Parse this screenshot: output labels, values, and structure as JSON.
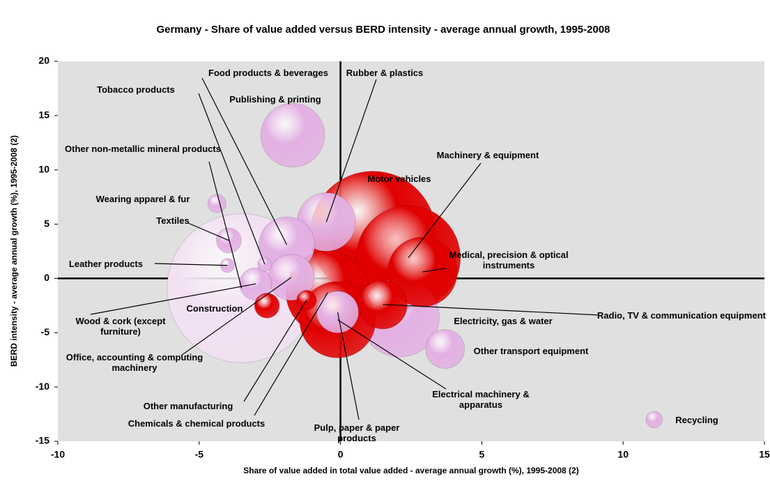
{
  "chart_data": {
    "type": "bubble",
    "title": "Germany - Share of value added versus BERD intensity - average annual growth, 1995-2008",
    "x_label": "Share of value added in total value added - average annual growth (%), 1995-2008 (2)",
    "y_label": "BERD intensity - average annual growth (%), 1995-2008 (2)",
    "xlim": [
      -10,
      15
    ],
    "xticks": [
      -10,
      -5,
      0,
      5,
      10,
      15
    ],
    "ylim": [
      -15,
      20
    ],
    "yticks": [
      -15,
      -10,
      -5,
      0,
      5,
      10,
      15,
      20
    ],
    "points": [
      {
        "label": "Other non-metallic mineral products",
        "x": -3.5,
        "y": -0.9,
        "size": 114,
        "color": "#f3e1f3"
      },
      {
        "label": "Motor vehicles",
        "x": 1.15,
        "y": 4.1,
        "size": 81,
        "color": "#e00000"
      },
      {
        "label": "Machinery & equipment",
        "x": 2.4,
        "y": 1.9,
        "size": 56,
        "color": "#e00000"
      },
      {
        "label": "Chemicals & chemical products",
        "x": -0.45,
        "y": -1.3,
        "size": 36,
        "color": "#e00000"
      },
      {
        "label": "Electricity, gas & water",
        "x": 2.1,
        "y": -3.6,
        "size": 32,
        "color": "#e3b0e3"
      },
      {
        "label": "Electrical machinery & apparatus",
        "x": -0.1,
        "y": -3.8,
        "size": 30,
        "color": "#e00000"
      },
      {
        "label": "Medical, precision & optical instruments",
        "x": 2.9,
        "y": 0.6,
        "size": 25,
        "color": "#e00000"
      },
      {
        "label": "Publishing & printing",
        "x": -1.69,
        "y": 13.2,
        "size": 21,
        "color": "#e3b0e3"
      },
      {
        "label": "Rubber & plastics",
        "x": -0.5,
        "y": 5.2,
        "size": 17.6,
        "color": "#e3b0e3"
      },
      {
        "label": "Food products & beverages",
        "x": -1.9,
        "y": 3.1,
        "size": 16,
        "color": "#e3b0e3"
      },
      {
        "label": "Radio, TV & communication equipment",
        "x": 1.5,
        "y": -2.4,
        "size": 12.3,
        "color": "#e00000"
      },
      {
        "label": "Office, accounting & computing machinery",
        "x": -1.74,
        "y": 0.1,
        "size": 10.9,
        "color": "#e3b0e3"
      },
      {
        "label": "Pulp, paper & paper products",
        "x": -0.1,
        "y": -3.1,
        "size": 9,
        "color": "#e3b0e3"
      },
      {
        "label": "Other transport equipment",
        "x": 3.7,
        "y": -6.5,
        "size": 7.8,
        "color": "#e3b0e3"
      },
      {
        "label": "Wood & cork (except furniture)",
        "x": -3.0,
        "y": -0.5,
        "size": 5.3,
        "color": "#e3b0e3"
      },
      {
        "label": "Textiles",
        "x": -3.95,
        "y": 3.5,
        "size": 3.2,
        "color": "#e3b0e3"
      },
      {
        "label": "Construction",
        "x": -2.6,
        "y": -2.5,
        "size": 3.2,
        "color": "#e00000"
      },
      {
        "label": "Other manufacturing",
        "x": -1.2,
        "y": -2.0,
        "size": 2,
        "color": "#e00000"
      },
      {
        "label": "Wearing apparel & fur",
        "x": -4.37,
        "y": 6.9,
        "size": 1.7,
        "color": "#e3b0e3"
      },
      {
        "label": "Recycling",
        "x": 11.1,
        "y": -13.0,
        "size": 1.4,
        "color": "#e3b0e3"
      },
      {
        "label": "Leather products",
        "x": -4.0,
        "y": 1.2,
        "size": 1,
        "color": "#e3b0e3"
      },
      {
        "label": "Tobacco products",
        "x": -2.68,
        "y": 1.3,
        "size": 1,
        "color": "#e3b0e3"
      }
    ]
  }
}
